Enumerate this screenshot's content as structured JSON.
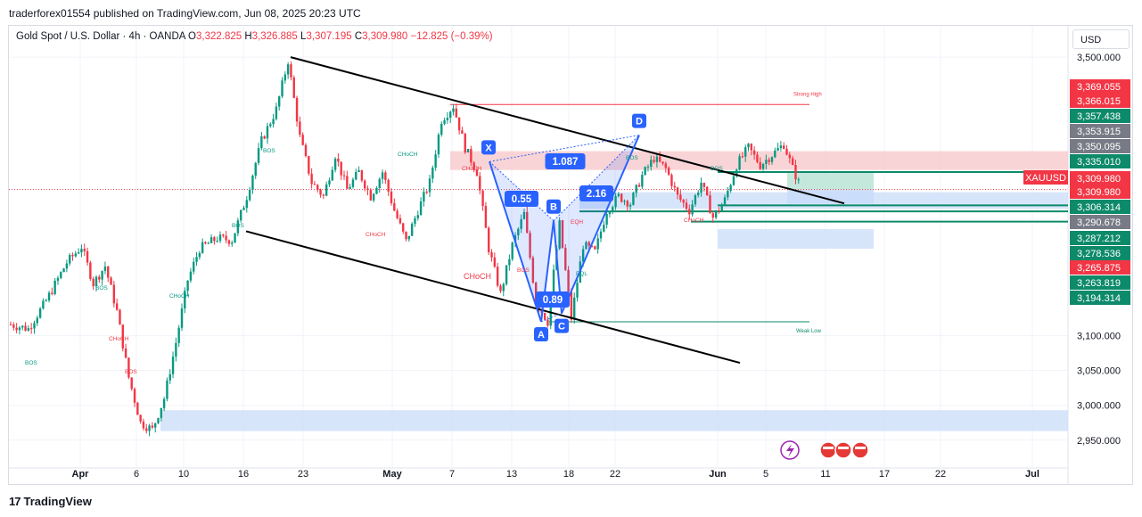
{
  "header": {
    "published_line": "traderforex01554 published on TradingView.com, Jun 08, 2025 20:23 UTC"
  },
  "legend": {
    "symbol": "Gold Spot / U.S. Dollar · 4h · OANDA",
    "o_label": "O",
    "o_value": "3,322.825",
    "h_label": "H",
    "h_value": "3,326.885",
    "l_label": "L",
    "l_value": "3,307.195",
    "c_label": "C",
    "c_value": "3,309.980",
    "change": "−12.825 (−0.39%)"
  },
  "currency_button": "USD",
  "branding": {
    "logo": "17",
    "name": "TradingView"
  },
  "colors": {
    "up": "#089981",
    "down": "#f23645",
    "price_line": "#f23645",
    "supply_zone": "#f7c5c8",
    "demand_zone": "#c9dcfa",
    "pattern": "#2962ff",
    "trendline": "#000000",
    "tp_zone": "#b7e2d3",
    "level_green": "#0d8a6a",
    "level_gray": "#787b86"
  },
  "chart_data": {
    "type": "candlestick",
    "symbol": "XAUUSD",
    "timeframe": "4h",
    "ylim": [
      2910,
      3545
    ],
    "y_ticks": [
      2950,
      3000,
      3050,
      3100,
      3500
    ],
    "y_tick_labels": [
      "2,950.000",
      "3,000.000",
      "3,050.000",
      "3,100.000",
      "3,500.000"
    ],
    "x_tick_labels": [
      "Apr",
      "6",
      "10",
      "16",
      "23",
      "May",
      "7",
      "13",
      "18",
      "22",
      "Jun",
      "5",
      "11",
      "17",
      "22",
      "Jul"
    ],
    "bold_x_ticks": [
      "Apr",
      "May",
      "Jun",
      "Jul"
    ],
    "path_points": [
      {
        "t": 0,
        "p": 3116
      },
      {
        "t": 6,
        "p": 3110
      },
      {
        "t": 12,
        "p": 3150
      },
      {
        "t": 19,
        "p": 3205
      },
      {
        "t": 24,
        "p": 3228
      },
      {
        "t": 28,
        "p": 3175
      },
      {
        "t": 32,
        "p": 3200
      },
      {
        "t": 36,
        "p": 3135
      },
      {
        "t": 40,
        "p": 3040
      },
      {
        "t": 44,
        "p": 2975
      },
      {
        "t": 48,
        "p": 2965
      },
      {
        "t": 52,
        "p": 3010
      },
      {
        "t": 56,
        "p": 3090
      },
      {
        "t": 60,
        "p": 3180
      },
      {
        "t": 64,
        "p": 3225
      },
      {
        "t": 70,
        "p": 3240
      },
      {
        "t": 75,
        "p": 3237
      },
      {
        "t": 80,
        "p": 3300
      },
      {
        "t": 85,
        "p": 3380
      },
      {
        "t": 90,
        "p": 3425
      },
      {
        "t": 94,
        "p": 3495
      },
      {
        "t": 98,
        "p": 3385
      },
      {
        "t": 102,
        "p": 3320
      },
      {
        "t": 106,
        "p": 3300
      },
      {
        "t": 110,
        "p": 3360
      },
      {
        "t": 114,
        "p": 3310
      },
      {
        "t": 118,
        "p": 3335
      },
      {
        "t": 122,
        "p": 3300
      },
      {
        "t": 126,
        "p": 3335
      },
      {
        "t": 130,
        "p": 3280
      },
      {
        "t": 134,
        "p": 3235
      },
      {
        "t": 138,
        "p": 3280
      },
      {
        "t": 142,
        "p": 3320
      },
      {
        "t": 146,
        "p": 3410
      },
      {
        "t": 150,
        "p": 3430
      },
      {
        "t": 154,
        "p": 3370
      },
      {
        "t": 158,
        "p": 3335
      },
      {
        "t": 162,
        "p": 3225
      },
      {
        "t": 166,
        "p": 3160
      },
      {
        "t": 170,
        "p": 3230
      },
      {
        "t": 174,
        "p": 3275
      },
      {
        "t": 178,
        "p": 3150
      },
      {
        "t": 182,
        "p": 3120
      },
      {
        "t": 186,
        "p": 3260
      },
      {
        "t": 190,
        "p": 3125
      },
      {
        "t": 194,
        "p": 3230
      },
      {
        "t": 198,
        "p": 3220
      },
      {
        "t": 202,
        "p": 3280
      },
      {
        "t": 206,
        "p": 3300
      },
      {
        "t": 210,
        "p": 3290
      },
      {
        "t": 214,
        "p": 3330
      },
      {
        "t": 218,
        "p": 3355
      },
      {
        "t": 222,
        "p": 3340
      },
      {
        "t": 226,
        "p": 3300
      },
      {
        "t": 230,
        "p": 3280
      },
      {
        "t": 234,
        "p": 3320
      },
      {
        "t": 238,
        "p": 3270
      },
      {
        "t": 242,
        "p": 3295
      },
      {
        "t": 246,
        "p": 3345
      },
      {
        "t": 250,
        "p": 3370
      },
      {
        "t": 254,
        "p": 3345
      },
      {
        "t": 258,
        "p": 3360
      },
      {
        "t": 262,
        "p": 3375
      },
      {
        "t": 265,
        "p": 3340
      },
      {
        "t": 268,
        "p": 3310
      }
    ],
    "trendlines": [
      {
        "x1_label": "Apr 22",
        "y1": 3500,
        "x2_label": "Jun 13",
        "y2": 3290
      },
      {
        "x1_label": "Apr 16",
        "y1": 3250,
        "x2_label": "Jun 04",
        "y2": 3065
      }
    ],
    "harmonic_pattern": {
      "points": [
        {
          "label": "X",
          "value": 3350
        },
        {
          "label": "A",
          "value": 3120
        },
        {
          "label": "B",
          "value": 3265
        },
        {
          "label": "C",
          "value": 3132
        },
        {
          "label": "D",
          "value": 3388
        }
      ],
      "ratios": [
        "0.55",
        "0.89",
        "2.16",
        "1.087"
      ]
    },
    "zones": [
      {
        "kind": "supply",
        "from": 3338,
        "to": 3365
      },
      {
        "kind": "demand",
        "from": 3282,
        "to": 3306
      },
      {
        "kind": "demand",
        "from": 3225,
        "to": 3253
      },
      {
        "kind": "demand",
        "from": 2963,
        "to": 2993
      }
    ],
    "annotations": [
      "Strong High",
      "Weak Low",
      "CHoCH",
      "CHoCH",
      "CHoCH",
      "CHoCH",
      "CHoCH",
      "CHoCH",
      "CHoCH",
      "BOS",
      "BOS",
      "BOS",
      "BOS",
      "BOS",
      "BOS",
      "BOS",
      "EQH",
      "EQL",
      "BOS"
    ],
    "price_labels": [
      {
        "text": "3,369.055",
        "value": 3369.055,
        "color": "#f23645"
      },
      {
        "text": "3,366.015",
        "value": 3366.015,
        "color": "#f23645"
      },
      {
        "text": "3,357.438",
        "value": 3357.438,
        "color": "#0d8a6a"
      },
      {
        "text": "3,353.915",
        "value": 3353.915,
        "color": "#787b86"
      },
      {
        "text": "3,350.095",
        "value": 3350.095,
        "color": "#787b86"
      },
      {
        "text": "3,335.010",
        "value": 3335.01,
        "color": "#0d8a6a"
      },
      {
        "text": "3,309.980",
        "value": 3309.98,
        "color": "#f23645"
      },
      {
        "text": "3,309.980",
        "value": 3309.98,
        "color": "#f23645"
      },
      {
        "text": "3,306.314",
        "value": 3306.314,
        "color": "#0d8a6a"
      },
      {
        "text": "3,290.678",
        "value": 3290.678,
        "color": "#787b86"
      },
      {
        "text": "3,287.212",
        "value": 3287.212,
        "color": "#0d8a6a"
      },
      {
        "text": "3,278.536",
        "value": 3278.536,
        "color": "#0d8a6a"
      },
      {
        "text": "3,265.875",
        "value": 3265.875,
        "color": "#f23645"
      },
      {
        "text": "3,263.819",
        "value": 3263.819,
        "color": "#0d8a6a"
      },
      {
        "text": "3,194.314",
        "value": 3194.314,
        "color": "#0d8a6a"
      }
    ],
    "symbol_tag": "XAUUSD",
    "last_price": 3309.98
  }
}
